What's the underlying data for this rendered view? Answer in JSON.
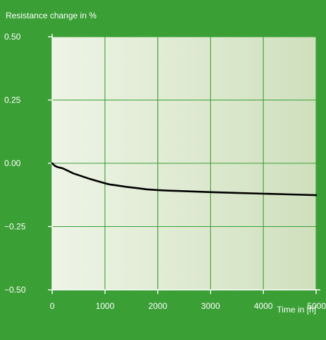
{
  "chart_data": {
    "type": "line",
    "title": "Resistance change in %",
    "xlabel": "Time in [h]",
    "ylabel": "",
    "xlim": [
      0,
      5000
    ],
    "ylim": [
      -0.5,
      0.5
    ],
    "x_ticks": [
      0,
      1000,
      2000,
      3000,
      4000,
      5000
    ],
    "x_tick_labels": [
      "0",
      "1000",
      "2000",
      "3000",
      "4000",
      "5000"
    ],
    "y_ticks": [
      0.5,
      0.25,
      0.0,
      -0.25,
      -0.5
    ],
    "y_tick_labels": [
      "0.50",
      "0.25",
      "0.00",
      "−0.25",
      "−0.50"
    ],
    "grid": true,
    "colors": {
      "frame": "#3a9f35",
      "plot_bg_left": "#eef4e6",
      "plot_bg_right": "#cfe0bd",
      "grid": "#3a9f35",
      "line": "#000000",
      "text": "#ffffff"
    },
    "series": [
      {
        "x": [
          0,
          50,
          100,
          200,
          300,
          400,
          500,
          600,
          700,
          800,
          900,
          1000,
          1100,
          1200,
          1400,
          1600,
          1800,
          2000,
          2200,
          2500,
          3000,
          3500,
          4000,
          4500,
          5000
        ],
        "y": [
          0.0,
          -0.01,
          -0.015,
          -0.02,
          -0.03,
          -0.04,
          -0.047,
          -0.054,
          -0.061,
          -0.067,
          -0.073,
          -0.079,
          -0.084,
          -0.087,
          -0.093,
          -0.098,
          -0.103,
          -0.106,
          -0.108,
          -0.11,
          -0.114,
          -0.117,
          -0.12,
          -0.123,
          -0.126
        ]
      }
    ]
  }
}
